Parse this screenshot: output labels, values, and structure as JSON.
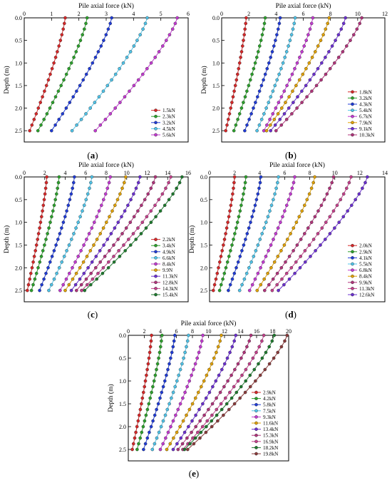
{
  "chart_data": [
    {
      "type": "line",
      "panel_label": "a",
      "xlabel": "Pile axial force (kN)",
      "ylabel": "Depth (m)",
      "xlim": [
        0,
        6
      ],
      "ylim": [
        0,
        2.75
      ],
      "x_ticks": [
        0,
        1,
        2,
        3,
        4,
        5,
        6
      ],
      "y_ticks": [
        0.0,
        0.5,
        1.0,
        1.5,
        2.0,
        2.5
      ],
      "y_inverted": true,
      "x_axis_position": "top",
      "legend_position": "bottom-right",
      "depths": [
        0.0,
        0.125,
        0.25,
        0.375,
        0.5,
        0.625,
        0.75,
        0.875,
        1.0,
        1.125,
        1.25,
        1.375,
        1.5,
        1.625,
        1.75,
        1.875,
        2.0,
        2.125,
        2.25,
        2.375,
        2.5
      ],
      "series": [
        {
          "name": "1.5kN",
          "color": "#d62728",
          "top": 1.5,
          "bottom": 0.2
        },
        {
          "name": "2.3kN",
          "color": "#2ca02c",
          "top": 2.3,
          "bottom": 0.5
        },
        {
          "name": "3.2kN",
          "color": "#1f3bd6",
          "top": 3.2,
          "bottom": 1.0
        },
        {
          "name": "4.5kN",
          "color": "#4fc3e8",
          "top": 4.5,
          "bottom": 1.75
        },
        {
          "name": "5.6kN",
          "color": "#c23ad0",
          "top": 5.6,
          "bottom": 2.6
        }
      ]
    },
    {
      "type": "line",
      "panel_label": "b",
      "xlabel": "Pile axial force (kN)",
      "ylabel": "Depth (m)",
      "xlim": [
        0,
        12
      ],
      "ylim": [
        0,
        2.75
      ],
      "x_ticks": [
        0,
        2,
        4,
        6,
        8,
        10,
        12
      ],
      "y_ticks": [
        0.0,
        0.5,
        1.0,
        1.5,
        2.0,
        2.5
      ],
      "y_inverted": true,
      "x_axis_position": "top",
      "legend_position": "bottom-right",
      "depths": [
        0.0,
        0.125,
        0.25,
        0.375,
        0.5,
        0.625,
        0.75,
        0.875,
        1.0,
        1.125,
        1.25,
        1.375,
        1.5,
        1.625,
        1.75,
        1.875,
        2.0,
        2.125,
        2.25,
        2.375,
        2.5
      ],
      "series": [
        {
          "name": "1.8kN",
          "color": "#d62728",
          "top": 1.8,
          "bottom": 0.3
        },
        {
          "name": "3.2kN",
          "color": "#2ca02c",
          "top": 3.2,
          "bottom": 0.9
        },
        {
          "name": "4.3kN",
          "color": "#1f3bd6",
          "top": 4.3,
          "bottom": 1.7
        },
        {
          "name": "5.4kN",
          "color": "#4fc3e8",
          "top": 5.4,
          "bottom": 2.6
        },
        {
          "name": "6.7kN",
          "color": "#c23ad0",
          "top": 6.7,
          "bottom": 3.1
        },
        {
          "name": "7.9kN",
          "color": "#e0a000",
          "top": 7.9,
          "bottom": 3.3
        },
        {
          "name": "9.1kN",
          "color": "#6b2fd0",
          "top": 9.1,
          "bottom": 3.6
        },
        {
          "name": "10.3kN",
          "color": "#b0337a",
          "top": 10.3,
          "bottom": 4.0
        }
      ]
    },
    {
      "type": "line",
      "panel_label": "c",
      "xlabel": "Pile axial force (kN)",
      "ylabel": "Depth (m)",
      "xlim": [
        0,
        16
      ],
      "ylim": [
        0,
        2.75
      ],
      "x_ticks": [
        0,
        2,
        4,
        6,
        8,
        10,
        12,
        14,
        16
      ],
      "y_ticks": [
        0.0,
        0.5,
        1.0,
        1.5,
        2.0,
        2.5
      ],
      "y_inverted": true,
      "x_axis_position": "top",
      "legend_position": "bottom-right",
      "depths": [
        0.0,
        0.125,
        0.25,
        0.375,
        0.5,
        0.625,
        0.75,
        0.875,
        1.0,
        1.125,
        1.25,
        1.375,
        1.5,
        1.625,
        1.75,
        1.875,
        2.0,
        2.125,
        2.25,
        2.375,
        2.5
      ],
      "series": [
        {
          "name": "2.2kN",
          "color": "#d62728",
          "top": 2.2,
          "bottom": 0.3
        },
        {
          "name": "3.4kN",
          "color": "#2ca02c",
          "top": 3.4,
          "bottom": 0.7
        },
        {
          "name": "4.9kN",
          "color": "#1f3bd6",
          "top": 4.9,
          "bottom": 1.5
        },
        {
          "name": "6.6kN",
          "color": "#4fc3e8",
          "top": 6.6,
          "bottom": 2.4
        },
        {
          "name": "8.4kN",
          "color": "#c23ad0",
          "top": 8.4,
          "bottom": 3.5
        },
        {
          "name": "9.9N",
          "color": "#e0a000",
          "top": 9.9,
          "bottom": 4.0
        },
        {
          "name": "11.3kN",
          "color": "#6b2fd0",
          "top": 11.3,
          "bottom": 4.6
        },
        {
          "name": "12.8kN",
          "color": "#b0337a",
          "top": 12.8,
          "bottom": 5.1
        },
        {
          "name": "14.3kN",
          "color": "#c2408a",
          "top": 14.3,
          "bottom": 5.6
        },
        {
          "name": "15.4kN",
          "color": "#1e7a2e",
          "top": 15.4,
          "bottom": 5.9
        }
      ]
    },
    {
      "type": "line",
      "panel_label": "d",
      "xlabel": "Pile axial force (kN)",
      "ylabel": "Depth (m)",
      "xlim": [
        0,
        14
      ],
      "ylim": [
        0,
        2.75
      ],
      "x_ticks": [
        0,
        2,
        4,
        6,
        8,
        10,
        12,
        14
      ],
      "y_ticks": [
        0.0,
        0.5,
        1.0,
        1.5,
        2.0,
        2.5
      ],
      "y_inverted": true,
      "x_axis_position": "top",
      "legend_position": "bottom-right",
      "depths": [
        0.0,
        0.125,
        0.25,
        0.375,
        0.5,
        0.625,
        0.75,
        0.875,
        1.0,
        1.125,
        1.25,
        1.375,
        1.5,
        1.625,
        1.75,
        1.875,
        2.0,
        2.125,
        2.25,
        2.375,
        2.5
      ],
      "series": [
        {
          "name": "2.0kN",
          "color": "#d62728",
          "top": 2.0,
          "bottom": 0.3
        },
        {
          "name": "2.9kN",
          "color": "#2ca02c",
          "top": 2.9,
          "bottom": 0.8
        },
        {
          "name": "4.1kN",
          "color": "#1f3bd6",
          "top": 4.1,
          "bottom": 1.5
        },
        {
          "name": "5.5kN",
          "color": "#4fc3e8",
          "top": 5.5,
          "bottom": 2.4
        },
        {
          "name": "6.8kN",
          "color": "#c23ad0",
          "top": 6.8,
          "bottom": 3.2
        },
        {
          "name": "8.4kN",
          "color": "#e0a000",
          "top": 8.4,
          "bottom": 3.8
        },
        {
          "name": "9.9kN",
          "color": "#b0337a",
          "top": 9.9,
          "bottom": 4.4
        },
        {
          "name": "11.3kN",
          "color": "#c2408a",
          "top": 11.3,
          "bottom": 5.0
        },
        {
          "name": "12.6kN",
          "color": "#6b2fd0",
          "top": 12.6,
          "bottom": 5.5
        }
      ]
    },
    {
      "type": "line",
      "panel_label": "e",
      "xlabel": "Pile axial force (kN)",
      "ylabel": "Depth (m)",
      "xlim": [
        0,
        20
      ],
      "ylim": [
        0,
        2.75
      ],
      "x_ticks": [
        0,
        2,
        4,
        6,
        8,
        10,
        12,
        14,
        16,
        18,
        20
      ],
      "y_ticks": [
        0.0,
        0.5,
        1.0,
        1.5,
        2.0,
        2.5
      ],
      "y_inverted": true,
      "x_axis_position": "top",
      "legend_position": "bottom-right",
      "depths": [
        0.0,
        0.125,
        0.25,
        0.375,
        0.5,
        0.625,
        0.75,
        0.875,
        1.0,
        1.125,
        1.25,
        1.375,
        1.5,
        1.625,
        1.75,
        1.875,
        2.0,
        2.125,
        2.25,
        2.375,
        2.5
      ],
      "series": [
        {
          "name": "2.9kN",
          "color": "#d62728",
          "top": 2.9,
          "bottom": 0.5
        },
        {
          "name": "4.2kN",
          "color": "#2ca02c",
          "top": 4.2,
          "bottom": 1.1
        },
        {
          "name": "5.8kN",
          "color": "#1f3bd6",
          "top": 5.8,
          "bottom": 1.9
        },
        {
          "name": "7.5kN",
          "color": "#4fc3e8",
          "top": 7.5,
          "bottom": 3.0
        },
        {
          "name": "9.3kN",
          "color": "#c23ad0",
          "top": 9.3,
          "bottom": 4.0
        },
        {
          "name": "11.6kN",
          "color": "#e0a000",
          "top": 11.6,
          "bottom": 4.8
        },
        {
          "name": "13.4kN",
          "color": "#6b2fd0",
          "top": 13.4,
          "bottom": 5.6
        },
        {
          "name": "15.3kN",
          "color": "#b0337a",
          "top": 15.3,
          "bottom": 6.2
        },
        {
          "name": "16.9kN",
          "color": "#c2408a",
          "top": 16.9,
          "bottom": 6.8
        },
        {
          "name": "18.2kN",
          "color": "#1e7a2e",
          "top": 18.2,
          "bottom": 7.0
        },
        {
          "name": "19.8kN",
          "color": "#8a3b3b",
          "top": 19.8,
          "bottom": 7.4
        }
      ]
    }
  ]
}
